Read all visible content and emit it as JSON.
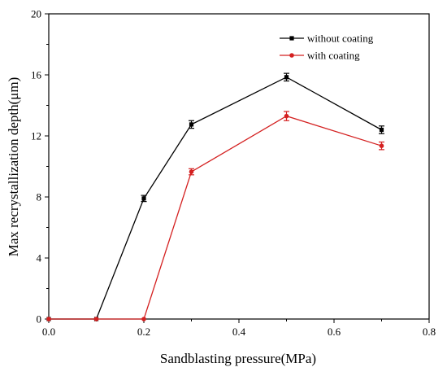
{
  "chart_data": {
    "type": "line",
    "title": "",
    "xlabel": "Sandblasting pressure(MPa)",
    "ylabel": "Max recrystallization depth(μm)",
    "xlim": [
      0.0,
      0.8
    ],
    "ylim": [
      0,
      20
    ],
    "x_ticks": [
      "0.0",
      "0.2",
      "0.4",
      "0.6",
      "0.8"
    ],
    "x_tick_values": [
      0.0,
      0.2,
      0.4,
      0.6,
      0.8
    ],
    "y_ticks": [
      "0",
      "4",
      "8",
      "12",
      "16",
      "20"
    ],
    "y_tick_values": [
      0,
      4,
      8,
      12,
      16,
      20
    ],
    "grid": false,
    "legend_position": "top-right",
    "series": [
      {
        "name": "without coating",
        "color": "#000000",
        "marker": "square",
        "points": [
          {
            "x": 0.0,
            "y": 0.0,
            "err": 0
          },
          {
            "x": 0.1,
            "y": 0.0,
            "err": 0
          },
          {
            "x": 0.2,
            "y": 7.9,
            "err": 0.2
          },
          {
            "x": 0.3,
            "y": 12.75,
            "err": 0.25
          },
          {
            "x": 0.5,
            "y": 15.85,
            "err": 0.25
          },
          {
            "x": 0.7,
            "y": 12.4,
            "err": 0.25
          }
        ]
      },
      {
        "name": "with coating",
        "color": "#d42020",
        "marker": "circle",
        "points": [
          {
            "x": 0.0,
            "y": 0.0,
            "err": 0
          },
          {
            "x": 0.1,
            "y": 0.0,
            "err": 0
          },
          {
            "x": 0.2,
            "y": 0.0,
            "err": 0
          },
          {
            "x": 0.3,
            "y": 9.65,
            "err": 0.2
          },
          {
            "x": 0.5,
            "y": 13.3,
            "err": 0.3
          },
          {
            "x": 0.7,
            "y": 11.35,
            "err": 0.25
          }
        ]
      }
    ]
  }
}
